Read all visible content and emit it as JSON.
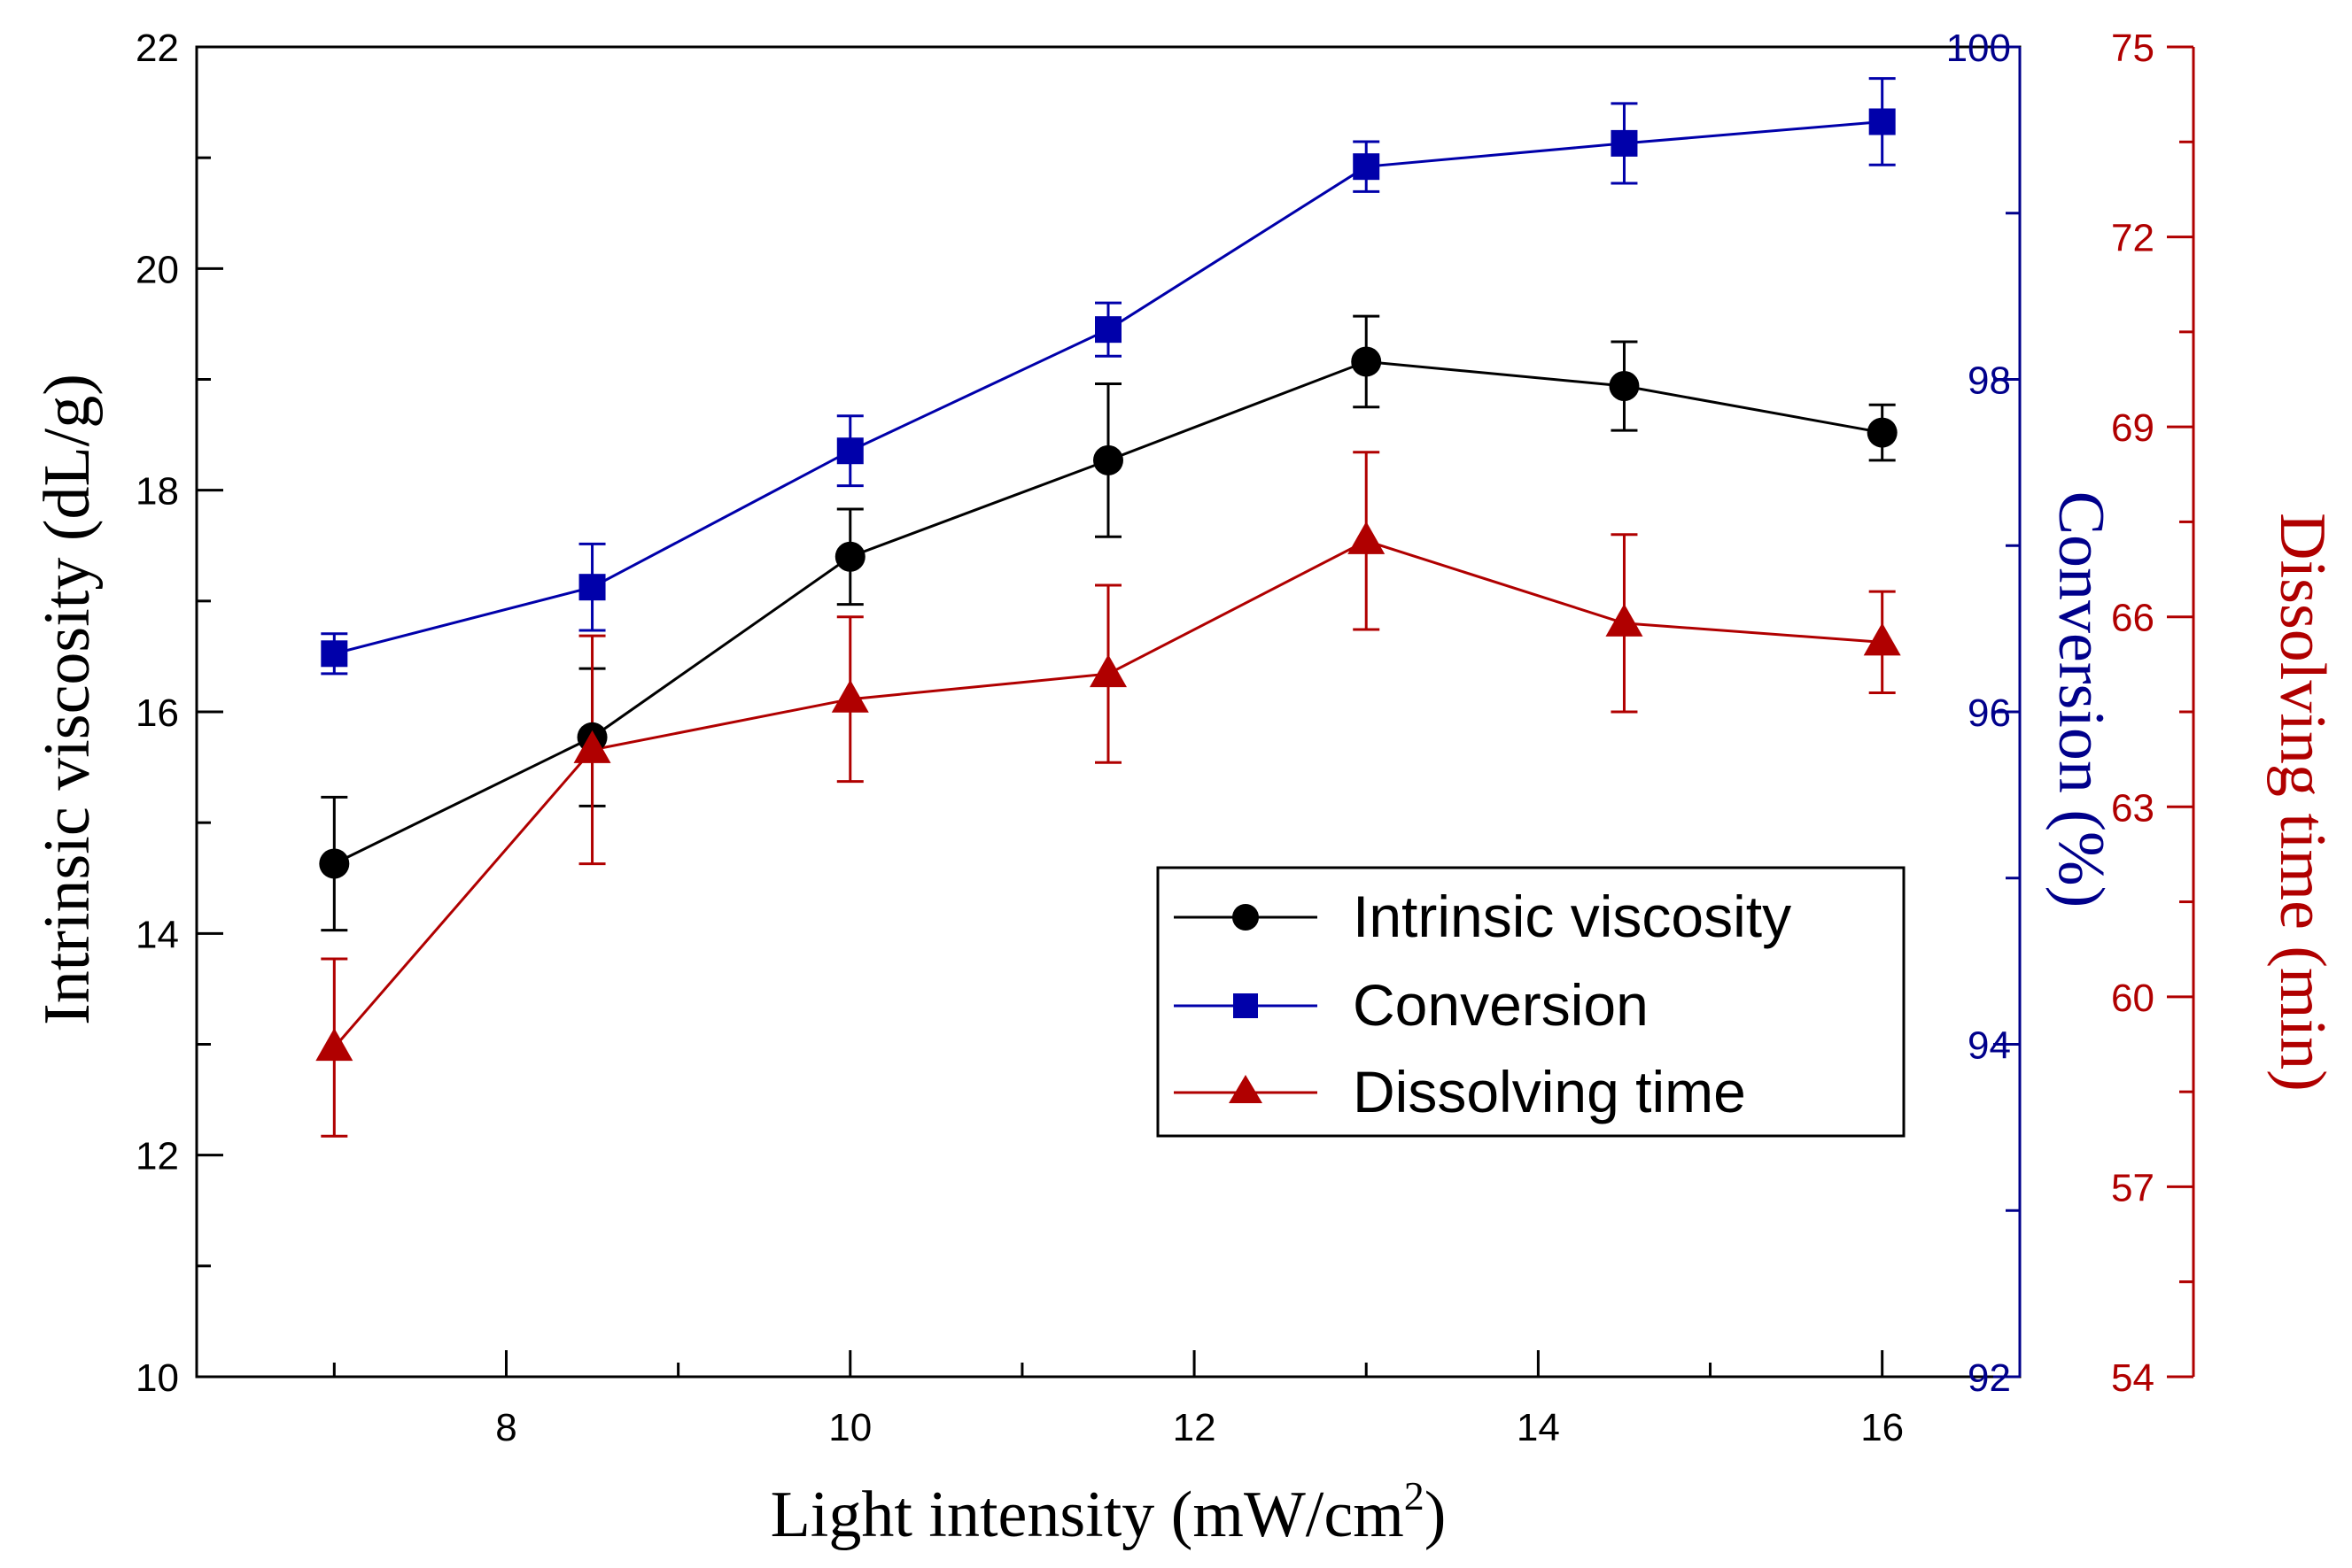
{
  "chart_data": {
    "type": "line",
    "x": [
      7,
      8.5,
      10,
      11.5,
      13,
      14.5,
      16
    ],
    "xlabel": "Light intensity (mW/cm",
    "xlabel_superscript": "2",
    "xlabel_close": ")",
    "xlim": [
      6.2,
      16.8
    ],
    "x_ticks": [
      8,
      10,
      12,
      14,
      16
    ],
    "x_tick_labels": [
      "8",
      "10",
      "12",
      "14",
      "16"
    ],
    "legend_position": "center-right",
    "series": [
      {
        "name": "Intrinsic viscosity",
        "axis": "left",
        "marker": "circle",
        "color": "#000000",
        "values": [
          14.63,
          15.77,
          17.4,
          18.27,
          19.16,
          18.94,
          18.52
        ],
        "errors": [
          0.6,
          0.62,
          0.43,
          0.69,
          0.41,
          0.4,
          0.25
        ]
      },
      {
        "name": "Conversion",
        "axis": "right1",
        "marker": "square",
        "color": "#0000aa",
        "values": [
          96.35,
          96.75,
          97.57,
          98.3,
          99.28,
          99.42,
          99.55
        ],
        "errors": [
          0.12,
          0.26,
          0.21,
          0.16,
          0.15,
          0.24,
          0.26
        ]
      },
      {
        "name": "Dissolving time",
        "axis": "right2",
        "marker": "triangle",
        "color": "#b00000",
        "values": [
          59.2,
          63.9,
          64.7,
          65.1,
          67.2,
          65.9,
          65.6
        ],
        "errors": [
          1.4,
          1.8,
          1.3,
          1.4,
          1.4,
          1.4,
          0.8
        ]
      }
    ],
    "axes": {
      "left": {
        "label": "Intrinsic viscosity (dL/g)",
        "ylim": [
          10,
          22
        ],
        "ticks": [
          10,
          12,
          14,
          16,
          18,
          20,
          22
        ],
        "tick_labels": [
          "10",
          "12",
          "14",
          "16",
          "18",
          "20",
          "22"
        ],
        "color": "#000000"
      },
      "right1": {
        "label": "Conversion (%)",
        "ylim": [
          92,
          100
        ],
        "ticks": [
          92,
          94,
          96,
          98,
          100
        ],
        "tick_labels": [
          "92",
          "94",
          "96",
          "98",
          "100"
        ],
        "color": "#00008b"
      },
      "right2": {
        "label": "Dissolving time (min)",
        "ylim": [
          54,
          75
        ],
        "ticks": [
          54,
          57,
          60,
          63,
          66,
          69,
          72,
          75
        ],
        "tick_labels": [
          "54",
          "57",
          "60",
          "63",
          "66",
          "69",
          "72",
          "75"
        ],
        "color": "#b00000"
      }
    }
  }
}
